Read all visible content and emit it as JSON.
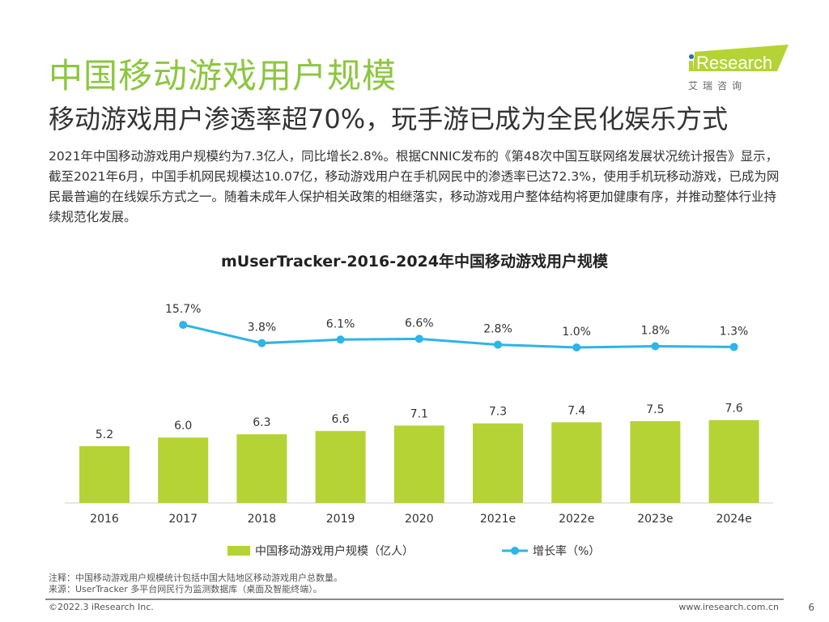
{
  "header": {
    "title": "中国移动游戏用户规模",
    "subtitle": "移动游戏用户渗透率超70%，玩手游已成为全民化娱乐方式",
    "body": "2021年中国移动游戏用户规模约为7.3亿人，同比增长2.8%。根据CNNIC发布的《第48次中国互联网络发展状况统计报告》显示，截至2021年6月，中国手机网民规模达10.07亿，移动游戏用户在手机网民中的渗透率已达72.3%，使用手机玩移动游戏，已成为网民最普遍的在线娱乐方式之一。随着未成年人保护相关政策的相继落实，移动游戏用户整体结构将更加健康有序，并推动整体行业持续规范化发展。"
  },
  "logo": {
    "text": "iResearch",
    "cn": "艾 瑞 咨 询",
    "color": "#b5d334"
  },
  "chart_data": {
    "type": "bar+line",
    "title": "mUserTracker-2016-2024年中国移动游戏用户规模",
    "categories": [
      "2016",
      "2017",
      "2018",
      "2019",
      "2020",
      "2021e",
      "2022e",
      "2023e",
      "2024e"
    ],
    "series": [
      {
        "name": "中国移动游戏用户规模（亿人）",
        "type": "bar",
        "color": "#b5d334",
        "values": [
          5.2,
          6.0,
          6.3,
          6.6,
          7.1,
          7.3,
          7.4,
          7.5,
          7.6
        ],
        "labels": [
          "5.2",
          "6.0",
          "6.3",
          "6.6",
          "7.1",
          "7.3",
          "7.4",
          "7.5",
          "7.6"
        ]
      },
      {
        "name": "增长率（%）",
        "type": "line",
        "color": "#2eb4e6",
        "values": [
          null,
          15.7,
          3.8,
          6.1,
          6.6,
          2.8,
          1.0,
          1.8,
          1.3
        ],
        "labels": [
          "",
          "15.7%",
          "3.8%",
          "6.1%",
          "6.6%",
          "2.8%",
          "1.0%",
          "1.8%",
          "1.3%"
        ]
      }
    ],
    "legend": "bottom"
  },
  "footer": {
    "note": "注释：中国移动游戏用户规模统计包括中国大陆地区移动游戏用户总数量。",
    "source": "来源：UserTracker 多平台网民行为监测数据库（桌面及智能终端）。",
    "copyright": "©2022.3 iResearch Inc.",
    "url": "www.iresearch.com.cn",
    "page": "6"
  }
}
